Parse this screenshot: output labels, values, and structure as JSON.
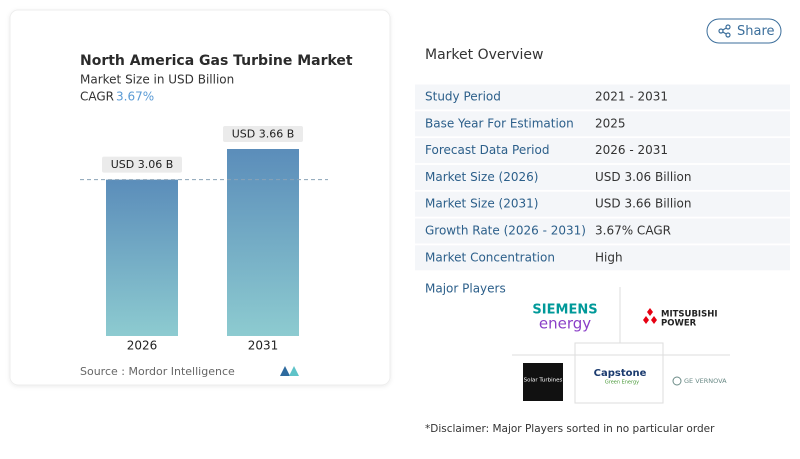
{
  "share_button": "Share",
  "chart_data": {
    "type": "bar",
    "title": "North America Gas Turbine Market",
    "subtitle": "Market Size in USD Billion",
    "cagr_label": "CAGR",
    "cagr_value": "3.67%",
    "categories": [
      "2026",
      "2031"
    ],
    "values": [
      3.06,
      3.66
    ],
    "value_labels": [
      "USD 3.06 B",
      "USD 3.66 B"
    ],
    "colors": [
      "#5b8dba",
      "#8dcbd0"
    ],
    "reference_line": true,
    "source": "Source :  Mordor Intelligence"
  },
  "market_overview": {
    "title": "Market Overview",
    "rows": [
      [
        "Study Period",
        "2021 - 2031"
      ],
      [
        "Base Year For Estimation",
        "2025"
      ],
      [
        "Forecast Data Period",
        "2026 - 2031"
      ],
      [
        "Market Size (2026)",
        "USD 3.06 Billion"
      ],
      [
        "Market Size (2031)",
        "USD 3.66 Billion"
      ],
      [
        "Growth Rate (2026 - 2031)",
        "3.67% CAGR"
      ],
      [
        "Market Concentration",
        "High"
      ]
    ]
  },
  "major_players": {
    "title": "Major Players",
    "players": [
      [
        "SIEMENS",
        "energy"
      ],
      [
        "MITSUBISHI",
        "POWER"
      ],
      [
        "Solar Turbines"
      ],
      [
        "Capstone",
        "Green Energy"
      ],
      [
        "GE VERNOVA"
      ]
    ]
  },
  "disclaimer": "*Disclaimer: Major Players sorted in no particular order"
}
